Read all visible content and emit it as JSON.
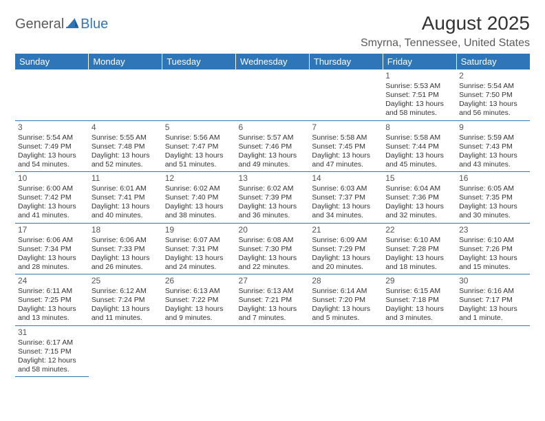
{
  "logo": {
    "text1": "General",
    "text2": "Blue"
  },
  "title": "August 2025",
  "location": "Smyrna, Tennessee, United States",
  "colors": {
    "header_bg": "#2f76b8",
    "header_text": "#ffffff",
    "border": "#2f76b8",
    "body_text": "#333333",
    "logo_gray": "#5a5a5a",
    "logo_blue": "#2f76b8",
    "background": "#ffffff"
  },
  "day_headers": [
    "Sunday",
    "Monday",
    "Tuesday",
    "Wednesday",
    "Thursday",
    "Friday",
    "Saturday"
  ],
  "weeks": [
    [
      null,
      null,
      null,
      null,
      null,
      {
        "day": "1",
        "sunrise": "Sunrise: 5:53 AM",
        "sunset": "Sunset: 7:51 PM",
        "daylight1": "Daylight: 13 hours",
        "daylight2": "and 58 minutes."
      },
      {
        "day": "2",
        "sunrise": "Sunrise: 5:54 AM",
        "sunset": "Sunset: 7:50 PM",
        "daylight1": "Daylight: 13 hours",
        "daylight2": "and 56 minutes."
      }
    ],
    [
      {
        "day": "3",
        "sunrise": "Sunrise: 5:54 AM",
        "sunset": "Sunset: 7:49 PM",
        "daylight1": "Daylight: 13 hours",
        "daylight2": "and 54 minutes."
      },
      {
        "day": "4",
        "sunrise": "Sunrise: 5:55 AM",
        "sunset": "Sunset: 7:48 PM",
        "daylight1": "Daylight: 13 hours",
        "daylight2": "and 52 minutes."
      },
      {
        "day": "5",
        "sunrise": "Sunrise: 5:56 AM",
        "sunset": "Sunset: 7:47 PM",
        "daylight1": "Daylight: 13 hours",
        "daylight2": "and 51 minutes."
      },
      {
        "day": "6",
        "sunrise": "Sunrise: 5:57 AM",
        "sunset": "Sunset: 7:46 PM",
        "daylight1": "Daylight: 13 hours",
        "daylight2": "and 49 minutes."
      },
      {
        "day": "7",
        "sunrise": "Sunrise: 5:58 AM",
        "sunset": "Sunset: 7:45 PM",
        "daylight1": "Daylight: 13 hours",
        "daylight2": "and 47 minutes."
      },
      {
        "day": "8",
        "sunrise": "Sunrise: 5:58 AM",
        "sunset": "Sunset: 7:44 PM",
        "daylight1": "Daylight: 13 hours",
        "daylight2": "and 45 minutes."
      },
      {
        "day": "9",
        "sunrise": "Sunrise: 5:59 AM",
        "sunset": "Sunset: 7:43 PM",
        "daylight1": "Daylight: 13 hours",
        "daylight2": "and 43 minutes."
      }
    ],
    [
      {
        "day": "10",
        "sunrise": "Sunrise: 6:00 AM",
        "sunset": "Sunset: 7:42 PM",
        "daylight1": "Daylight: 13 hours",
        "daylight2": "and 41 minutes."
      },
      {
        "day": "11",
        "sunrise": "Sunrise: 6:01 AM",
        "sunset": "Sunset: 7:41 PM",
        "daylight1": "Daylight: 13 hours",
        "daylight2": "and 40 minutes."
      },
      {
        "day": "12",
        "sunrise": "Sunrise: 6:02 AM",
        "sunset": "Sunset: 7:40 PM",
        "daylight1": "Daylight: 13 hours",
        "daylight2": "and 38 minutes."
      },
      {
        "day": "13",
        "sunrise": "Sunrise: 6:02 AM",
        "sunset": "Sunset: 7:39 PM",
        "daylight1": "Daylight: 13 hours",
        "daylight2": "and 36 minutes."
      },
      {
        "day": "14",
        "sunrise": "Sunrise: 6:03 AM",
        "sunset": "Sunset: 7:37 PM",
        "daylight1": "Daylight: 13 hours",
        "daylight2": "and 34 minutes."
      },
      {
        "day": "15",
        "sunrise": "Sunrise: 6:04 AM",
        "sunset": "Sunset: 7:36 PM",
        "daylight1": "Daylight: 13 hours",
        "daylight2": "and 32 minutes."
      },
      {
        "day": "16",
        "sunrise": "Sunrise: 6:05 AM",
        "sunset": "Sunset: 7:35 PM",
        "daylight1": "Daylight: 13 hours",
        "daylight2": "and 30 minutes."
      }
    ],
    [
      {
        "day": "17",
        "sunrise": "Sunrise: 6:06 AM",
        "sunset": "Sunset: 7:34 PM",
        "daylight1": "Daylight: 13 hours",
        "daylight2": "and 28 minutes."
      },
      {
        "day": "18",
        "sunrise": "Sunrise: 6:06 AM",
        "sunset": "Sunset: 7:33 PM",
        "daylight1": "Daylight: 13 hours",
        "daylight2": "and 26 minutes."
      },
      {
        "day": "19",
        "sunrise": "Sunrise: 6:07 AM",
        "sunset": "Sunset: 7:31 PM",
        "daylight1": "Daylight: 13 hours",
        "daylight2": "and 24 minutes."
      },
      {
        "day": "20",
        "sunrise": "Sunrise: 6:08 AM",
        "sunset": "Sunset: 7:30 PM",
        "daylight1": "Daylight: 13 hours",
        "daylight2": "and 22 minutes."
      },
      {
        "day": "21",
        "sunrise": "Sunrise: 6:09 AM",
        "sunset": "Sunset: 7:29 PM",
        "daylight1": "Daylight: 13 hours",
        "daylight2": "and 20 minutes."
      },
      {
        "day": "22",
        "sunrise": "Sunrise: 6:10 AM",
        "sunset": "Sunset: 7:28 PM",
        "daylight1": "Daylight: 13 hours",
        "daylight2": "and 18 minutes."
      },
      {
        "day": "23",
        "sunrise": "Sunrise: 6:10 AM",
        "sunset": "Sunset: 7:26 PM",
        "daylight1": "Daylight: 13 hours",
        "daylight2": "and 15 minutes."
      }
    ],
    [
      {
        "day": "24",
        "sunrise": "Sunrise: 6:11 AM",
        "sunset": "Sunset: 7:25 PM",
        "daylight1": "Daylight: 13 hours",
        "daylight2": "and 13 minutes."
      },
      {
        "day": "25",
        "sunrise": "Sunrise: 6:12 AM",
        "sunset": "Sunset: 7:24 PM",
        "daylight1": "Daylight: 13 hours",
        "daylight2": "and 11 minutes."
      },
      {
        "day": "26",
        "sunrise": "Sunrise: 6:13 AM",
        "sunset": "Sunset: 7:22 PM",
        "daylight1": "Daylight: 13 hours",
        "daylight2": "and 9 minutes."
      },
      {
        "day": "27",
        "sunrise": "Sunrise: 6:13 AM",
        "sunset": "Sunset: 7:21 PM",
        "daylight1": "Daylight: 13 hours",
        "daylight2": "and 7 minutes."
      },
      {
        "day": "28",
        "sunrise": "Sunrise: 6:14 AM",
        "sunset": "Sunset: 7:20 PM",
        "daylight1": "Daylight: 13 hours",
        "daylight2": "and 5 minutes."
      },
      {
        "day": "29",
        "sunrise": "Sunrise: 6:15 AM",
        "sunset": "Sunset: 7:18 PM",
        "daylight1": "Daylight: 13 hours",
        "daylight2": "and 3 minutes."
      },
      {
        "day": "30",
        "sunrise": "Sunrise: 6:16 AM",
        "sunset": "Sunset: 7:17 PM",
        "daylight1": "Daylight: 13 hours",
        "daylight2": "and 1 minute."
      }
    ],
    [
      {
        "day": "31",
        "sunrise": "Sunrise: 6:17 AM",
        "sunset": "Sunset: 7:15 PM",
        "daylight1": "Daylight: 12 hours",
        "daylight2": "and 58 minutes."
      },
      null,
      null,
      null,
      null,
      null,
      null
    ]
  ]
}
